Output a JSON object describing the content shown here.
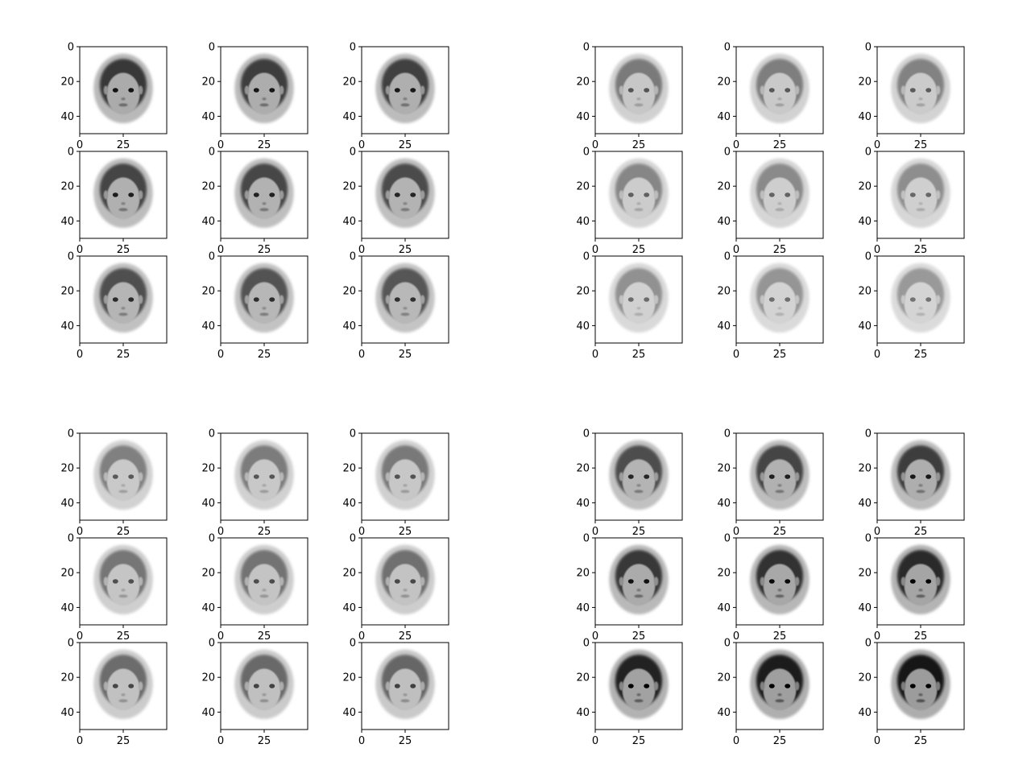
{
  "figure": {
    "background": "#ffffff",
    "axis_color": "#000000"
  },
  "chart_data": {
    "type": "heatmap",
    "colormap": "gray_r",
    "grid": false,
    "description_of_content": "",
    "groups": [
      {
        "name": "",
        "tone": "dark",
        "start_darkness": 0.78,
        "end_darkness": 0.66
      },
      {
        "name": "",
        "tone": "light",
        "start_darkness": 0.52,
        "end_darkness": 0.4
      },
      {
        "name": "",
        "tone": "medium",
        "start_darkness": 0.5,
        "end_darkness": 0.6
      },
      {
        "name": "",
        "tone": "dark",
        "start_darkness": 0.7,
        "end_darkness": 0.92
      }
    ],
    "panel_grid": {
      "rows": 3,
      "cols": 3
    },
    "image_shape": [
      50,
      50
    ],
    "xlim": [
      0,
      50
    ],
    "ylim": [
      50,
      0
    ],
    "x_ticks": [
      0,
      25
    ],
    "y_ticks": [
      0,
      20,
      40
    ]
  }
}
